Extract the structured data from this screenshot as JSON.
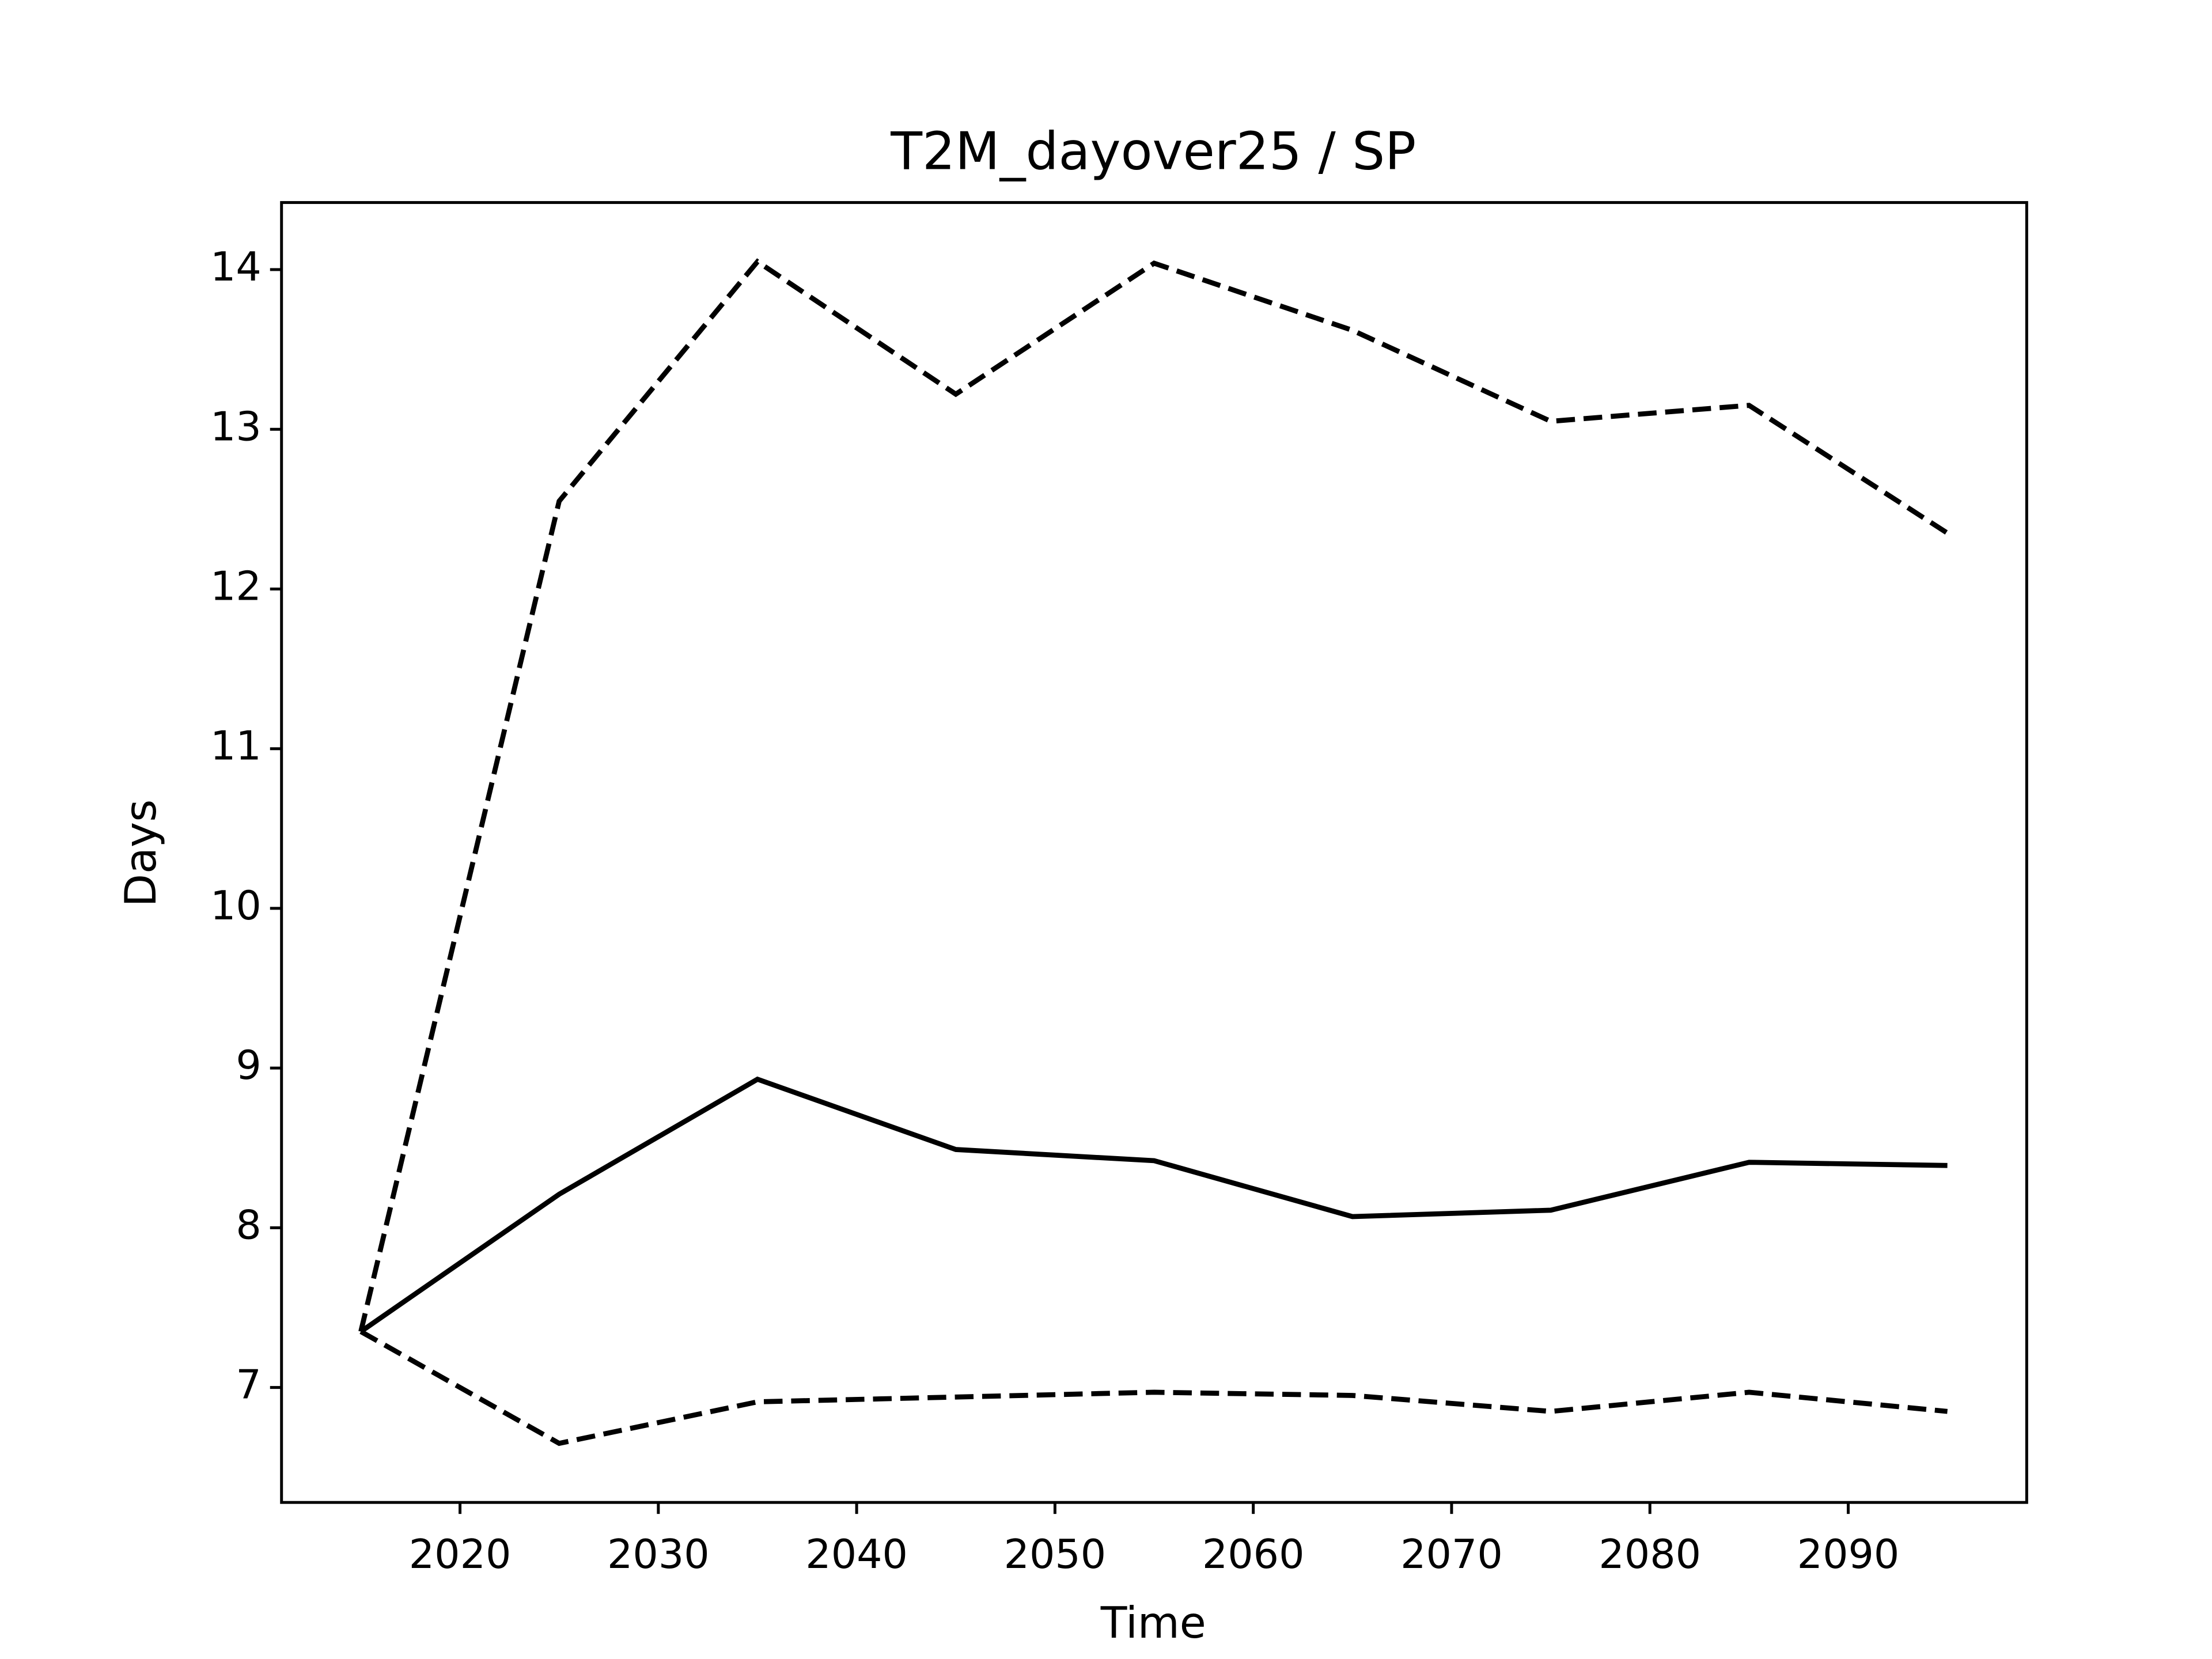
{
  "chart_data": {
    "type": "line",
    "title": "T2M_dayover25 / SP",
    "x_label": "Time",
    "y_label": "Days",
    "x": [
      2015,
      2025,
      2035,
      2045,
      2055,
      2065,
      2075,
      2085,
      2095
    ],
    "series": [
      {
        "color": "#000000",
        "linestyle": "solid",
        "values": [
          7.35,
          8.21,
          8.93,
          8.49,
          8.42,
          8.07,
          8.11,
          8.41,
          8.39
        ]
      },
      {
        "color": "#000000",
        "linestyle": "dashed",
        "values": [
          7.35,
          12.55,
          14.05,
          13.22,
          14.04,
          13.62,
          13.05,
          13.15,
          12.35
        ]
      },
      {
        "color": "#000000",
        "linestyle": "dashed",
        "values": [
          7.35,
          6.65,
          6.91,
          6.94,
          6.97,
          6.95,
          6.85,
          6.97,
          6.85
        ]
      }
    ],
    "xlim": [
      2011,
      2099
    ],
    "xticks": [
      2020,
      2030,
      2040,
      2050,
      2060,
      2070,
      2080,
      2090
    ],
    "ylim": [
      6.28,
      14.42
    ],
    "yticks": [
      7,
      8,
      9,
      10,
      11,
      12,
      13,
      14
    ],
    "grid": false
  }
}
